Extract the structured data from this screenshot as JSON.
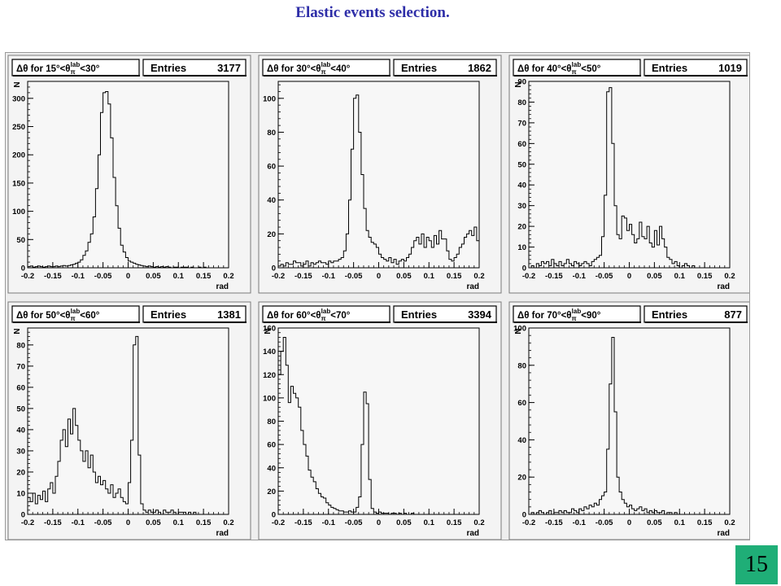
{
  "slide": {
    "title": "Elastic events selection.",
    "page_number": "15"
  },
  "chart_data": [
    {
      "type": "histogram",
      "title": "Δθ for 15°<θπlab<30°",
      "range_low": "15°",
      "range_high": "30°",
      "entries_label": "Entries",
      "entries": "3177",
      "xlabel": "rad",
      "ylabel": "N",
      "xlim": [
        -0.2,
        0.2
      ],
      "ylim": [
        0,
        330
      ],
      "xticks": [
        -0.2,
        -0.15,
        -0.1,
        -0.05,
        0,
        0.05,
        0.1,
        0.15,
        0.2
      ],
      "yticks": [
        0,
        50,
        100,
        150,
        200,
        250,
        300
      ],
      "bin_width": 0.005,
      "values": [
        2,
        3,
        1,
        2,
        3,
        2,
        1,
        2,
        3,
        2,
        2,
        3,
        2,
        3,
        4,
        3,
        4,
        5,
        6,
        8,
        10,
        14,
        22,
        30,
        45,
        60,
        90,
        140,
        200,
        275,
        310,
        312,
        290,
        230,
        160,
        110,
        70,
        40,
        28,
        18,
        12,
        10,
        8,
        6,
        5,
        4,
        3,
        2,
        3,
        2,
        1,
        2,
        1,
        2,
        1,
        2,
        1,
        0,
        1,
        1,
        0,
        1,
        1,
        1,
        0,
        1,
        0,
        0,
        1,
        0,
        1,
        0,
        0,
        0,
        0,
        0,
        0,
        0,
        0,
        0
      ]
    },
    {
      "type": "histogram",
      "title": "Δθ for 30°<θπlab<40°",
      "range_low": "30°",
      "range_high": "40°",
      "entries_label": "Entries",
      "entries": "1862",
      "xlabel": "rad",
      "ylabel": "",
      "xlim": [
        -0.2,
        0.2
      ],
      "ylim": [
        0,
        110
      ],
      "xticks": [
        -0.2,
        -0.15,
        -0.1,
        -0.05,
        0,
        0.05,
        0.1,
        0.15,
        0.2
      ],
      "yticks": [
        0,
        20,
        40,
        60,
        80,
        100
      ],
      "bin_width": 0.005,
      "values": [
        1,
        2,
        1,
        3,
        2,
        2,
        4,
        3,
        3,
        1,
        2,
        4,
        1,
        3,
        2,
        3,
        4,
        3,
        3,
        2,
        4,
        3,
        4,
        4,
        5,
        6,
        10,
        20,
        40,
        70,
        100,
        102,
        80,
        55,
        35,
        22,
        18,
        15,
        14,
        12,
        8,
        6,
        5,
        4,
        6,
        3,
        5,
        2,
        4,
        5,
        4,
        6,
        8,
        12,
        16,
        18,
        14,
        20,
        12,
        18,
        16,
        12,
        19,
        14,
        22,
        17,
        17,
        10,
        5,
        4,
        6,
        8,
        12,
        14,
        18,
        20,
        22,
        19,
        24,
        16
      ]
    },
    {
      "type": "histogram",
      "title": "Δθ for 40°<θπlab<50°",
      "range_low": "40°",
      "range_high": "50°",
      "entries_label": "Entries",
      "entries": "1019",
      "xlabel": "rad",
      "ylabel": "N",
      "xlim": [
        -0.2,
        0.2
      ],
      "ylim": [
        0,
        90
      ],
      "xticks": [
        -0.2,
        -0.15,
        -0.1,
        -0.05,
        0,
        0.05,
        0.1,
        0.15,
        0.2
      ],
      "yticks": [
        0,
        10,
        20,
        30,
        40,
        50,
        60,
        70,
        80,
        90
      ],
      "bin_width": 0.005,
      "values": [
        0,
        1,
        0,
        2,
        1,
        3,
        2,
        3,
        1,
        4,
        2,
        1,
        3,
        1,
        2,
        4,
        2,
        1,
        3,
        2,
        1,
        2,
        3,
        2,
        1,
        3,
        4,
        5,
        6,
        15,
        35,
        85,
        87,
        60,
        30,
        16,
        14,
        25,
        24,
        18,
        21,
        16,
        12,
        14,
        22,
        15,
        14,
        20,
        12,
        10,
        18,
        11,
        20,
        14,
        10,
        5,
        4,
        2,
        3,
        1,
        0,
        1,
        2,
        1,
        0,
        1,
        0,
        0,
        0,
        0,
        0,
        0,
        0,
        0,
        0,
        0,
        0,
        0,
        0,
        0
      ]
    },
    {
      "type": "histogram",
      "title": "Δθ for 50°<θπlab<60°",
      "range_low": "50°",
      "range_high": "60°",
      "entries_label": "Entries",
      "entries": "1381",
      "xlabel": "rad",
      "ylabel": "N",
      "xlim": [
        -0.2,
        0.2
      ],
      "ylim": [
        0,
        88
      ],
      "xticks": [
        -0.2,
        -0.15,
        -0.1,
        -0.05,
        0,
        0.05,
        0.1,
        0.15,
        0.2
      ],
      "yticks": [
        0,
        10,
        20,
        30,
        40,
        50,
        60,
        70,
        80
      ],
      "bin_width": 0.005,
      "values": [
        8,
        6,
        10,
        5,
        9,
        7,
        11,
        6,
        12,
        15,
        10,
        18,
        25,
        35,
        40,
        32,
        45,
        38,
        50,
        42,
        35,
        30,
        25,
        30,
        22,
        28,
        20,
        15,
        18,
        14,
        16,
        12,
        10,
        14,
        8,
        10,
        12,
        8,
        6,
        5,
        15,
        35,
        80,
        84,
        28,
        5,
        2,
        1,
        2,
        1,
        1,
        2,
        1,
        0,
        2,
        1,
        1,
        2,
        1,
        0,
        1,
        1,
        1,
        0,
        1,
        0,
        1,
        0,
        0,
        0,
        0,
        0,
        0,
        0,
        0,
        0,
        0,
        0,
        0,
        0
      ]
    },
    {
      "type": "histogram",
      "title": "Δθ for 60°<θπlab<70°",
      "range_low": "60°",
      "range_high": "70°",
      "entries_label": "Entries",
      "entries": "3394",
      "xlabel": "rad",
      "ylabel": "N",
      "xlim": [
        -0.2,
        0.2
      ],
      "ylim": [
        0,
        160
      ],
      "xticks": [
        -0.2,
        -0.15,
        -0.1,
        -0.05,
        0,
        0.05,
        0.1,
        0.15,
        0.2
      ],
      "yticks": [
        0,
        20,
        40,
        60,
        80,
        100,
        120,
        140,
        160
      ],
      "bin_width": 0.005,
      "values": [
        120,
        140,
        152,
        128,
        96,
        110,
        104,
        100,
        92,
        72,
        60,
        50,
        38,
        32,
        28,
        22,
        18,
        15,
        14,
        10,
        8,
        6,
        5,
        4,
        3,
        3,
        2,
        2,
        3,
        2,
        2,
        6,
        15,
        60,
        105,
        95,
        30,
        5,
        2,
        1,
        2,
        1,
        1,
        1,
        0,
        1,
        1,
        0,
        1,
        0,
        1,
        0,
        0,
        1,
        0,
        0,
        0,
        0,
        0,
        0,
        0,
        0,
        0,
        0,
        0,
        0,
        0,
        0,
        0,
        0,
        0,
        0,
        0,
        0,
        0,
        0,
        0,
        0,
        0,
        0
      ]
    },
    {
      "type": "histogram",
      "title": "Δθ for 70°<θπlab<90°",
      "range_low": "70°",
      "range_high": "90°",
      "entries_label": "Entries",
      "entries": "877",
      "xlabel": "rad",
      "ylabel": "N",
      "xlim": [
        -0.2,
        0.2
      ],
      "ylim": [
        0,
        100
      ],
      "xticks": [
        -0.2,
        -0.15,
        -0.1,
        -0.05,
        0,
        0.05,
        0.1,
        0.15,
        0.2
      ],
      "yticks": [
        0,
        20,
        40,
        60,
        80,
        100
      ],
      "bin_width": 0.005,
      "values": [
        0,
        1,
        0,
        1,
        2,
        1,
        0,
        1,
        2,
        0,
        1,
        1,
        2,
        1,
        2,
        1,
        1,
        3,
        2,
        1,
        3,
        2,
        4,
        3,
        5,
        4,
        6,
        5,
        8,
        10,
        12,
        35,
        70,
        95,
        55,
        20,
        12,
        8,
        6,
        4,
        5,
        3,
        2,
        3,
        4,
        2,
        3,
        1,
        2,
        1,
        2,
        1,
        1,
        2,
        0,
        1,
        1,
        0,
        1,
        0,
        0,
        0,
        0,
        0,
        0,
        0,
        0,
        0,
        0,
        0,
        0,
        0,
        0,
        0,
        0,
        0,
        0,
        0,
        0,
        0
      ]
    }
  ]
}
